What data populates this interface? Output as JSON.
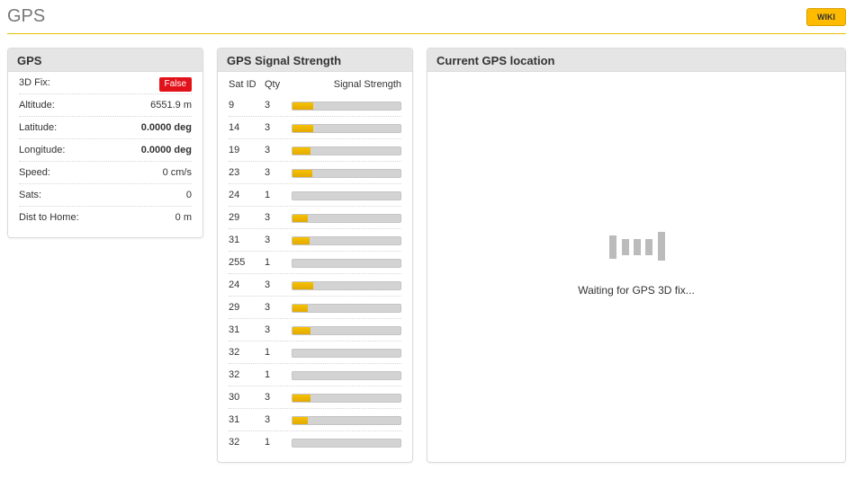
{
  "header": {
    "title": "GPS",
    "wiki_label": "WIKI",
    "accent": "#ffbb00",
    "rule_color": "#e2c200"
  },
  "gps": {
    "title": "GPS",
    "rows": [
      {
        "label": "3D Fix:",
        "value": "False",
        "badge": true,
        "badge_color": "#e2121a"
      },
      {
        "label": "Altitude:",
        "value": "6551.9 m"
      },
      {
        "label": "Latitude:",
        "value": "0.0000 deg",
        "bold": true
      },
      {
        "label": "Longitude:",
        "value": "0.0000 deg",
        "bold": true
      },
      {
        "label": "Speed:",
        "value": "0 cm/s"
      },
      {
        "label": "Sats:",
        "value": "0"
      },
      {
        "label": "Dist to Home:",
        "value": "0 m"
      }
    ]
  },
  "signal": {
    "title": "GPS Signal Strength",
    "headers": {
      "sat_id": "Sat ID",
      "qty": "Qty",
      "strength": "Signal Strength"
    },
    "rows": [
      {
        "sat_id": "9",
        "qty": "3",
        "strength": 0.19
      },
      {
        "sat_id": "14",
        "qty": "3",
        "strength": 0.19
      },
      {
        "sat_id": "19",
        "qty": "3",
        "strength": 0.17
      },
      {
        "sat_id": "23",
        "qty": "3",
        "strength": 0.18
      },
      {
        "sat_id": "24",
        "qty": "1",
        "strength": 0
      },
      {
        "sat_id": "29",
        "qty": "3",
        "strength": 0.14
      },
      {
        "sat_id": "31",
        "qty": "3",
        "strength": 0.16
      },
      {
        "sat_id": "255",
        "qty": "1",
        "strength": 0
      },
      {
        "sat_id": "24",
        "qty": "3",
        "strength": 0.19
      },
      {
        "sat_id": "29",
        "qty": "3",
        "strength": 0.14
      },
      {
        "sat_id": "31",
        "qty": "3",
        "strength": 0.17
      },
      {
        "sat_id": "32",
        "qty": "1",
        "strength": 0
      },
      {
        "sat_id": "32",
        "qty": "1",
        "strength": 0
      },
      {
        "sat_id": "30",
        "qty": "3",
        "strength": 0.17
      },
      {
        "sat_id": "31",
        "qty": "3",
        "strength": 0.14
      },
      {
        "sat_id": "32",
        "qty": "1",
        "strength": 0
      }
    ]
  },
  "location": {
    "title": "Current GPS location",
    "waiting_text": "Waiting for GPS 3D fix...",
    "icon": "signal-bars-icon"
  }
}
